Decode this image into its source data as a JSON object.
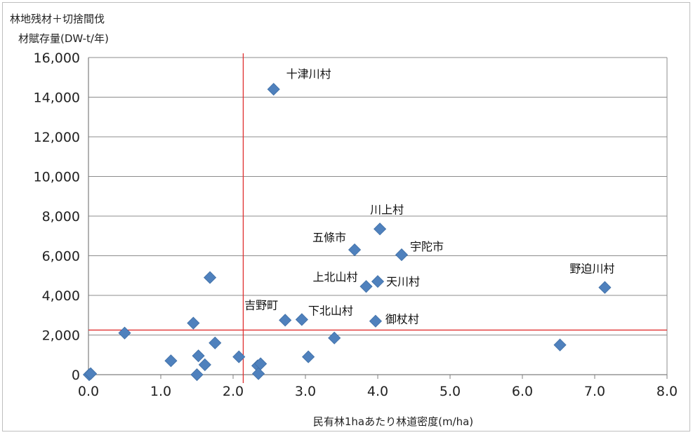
{
  "chart_data": {
    "type": "scatter",
    "title": "",
    "ylabel_line1": "林地残材＋切捨間伐",
    "ylabel_line2": "材賦存量(DW-t/年)",
    "xlabel": "民有林1haあたり林道密度(m/ha)",
    "xlim": [
      0,
      8
    ],
    "ylim": [
      0,
      16000
    ],
    "x_ticks": [
      "0.0",
      "1.0",
      "2.0",
      "3.0",
      "4.0",
      "5.0",
      "6.0",
      "7.0",
      "8.0"
    ],
    "y_ticks": [
      "0",
      "2,000",
      "4,000",
      "6,000",
      "8,000",
      "10,000",
      "12,000",
      "14,000",
      "16,000"
    ],
    "y_tick_values": [
      0,
      2000,
      4000,
      6000,
      8000,
      10000,
      12000,
      14000,
      16000
    ],
    "grid": "horizontal",
    "marker_color": "#4f81bd",
    "reference_line_color": "#e03030",
    "reference_lines": {
      "x": 2.14,
      "y": 2250
    },
    "points": [
      {
        "x": 2.56,
        "y": 14400,
        "label": "十津川村"
      },
      {
        "x": 4.03,
        "y": 7350,
        "label": "川上村"
      },
      {
        "x": 3.68,
        "y": 6300,
        "label": "五條市"
      },
      {
        "x": 4.33,
        "y": 6050,
        "label": "宇陀市"
      },
      {
        "x": 7.14,
        "y": 4400,
        "label": "野迫川村"
      },
      {
        "x": 3.84,
        "y": 4450,
        "label": "上北山村"
      },
      {
        "x": 4.0,
        "y": 4700,
        "label": "天川村"
      },
      {
        "x": 2.72,
        "y": 2750,
        "label": "吉野町"
      },
      {
        "x": 2.95,
        "y": 2780,
        "label": "下北山村"
      },
      {
        "x": 3.97,
        "y": 2700,
        "label": "御杖村"
      },
      {
        "x": 0.01,
        "y": 0,
        "label": ""
      },
      {
        "x": 0.03,
        "y": 50,
        "label": ""
      },
      {
        "x": 0.5,
        "y": 2100,
        "label": ""
      },
      {
        "x": 1.14,
        "y": 700,
        "label": ""
      },
      {
        "x": 1.45,
        "y": 2600,
        "label": ""
      },
      {
        "x": 1.52,
        "y": 950,
        "label": ""
      },
      {
        "x": 1.5,
        "y": 0,
        "label": ""
      },
      {
        "x": 1.61,
        "y": 500,
        "label": ""
      },
      {
        "x": 1.68,
        "y": 4900,
        "label": ""
      },
      {
        "x": 1.75,
        "y": 1600,
        "label": ""
      },
      {
        "x": 2.08,
        "y": 900,
        "label": ""
      },
      {
        "x": 2.34,
        "y": 450,
        "label": ""
      },
      {
        "x": 2.38,
        "y": 550,
        "label": ""
      },
      {
        "x": 2.35,
        "y": 50,
        "label": ""
      },
      {
        "x": 3.04,
        "y": 900,
        "label": ""
      },
      {
        "x": 3.4,
        "y": 1850,
        "label": ""
      },
      {
        "x": 6.52,
        "y": 1500,
        "label": ""
      }
    ]
  }
}
